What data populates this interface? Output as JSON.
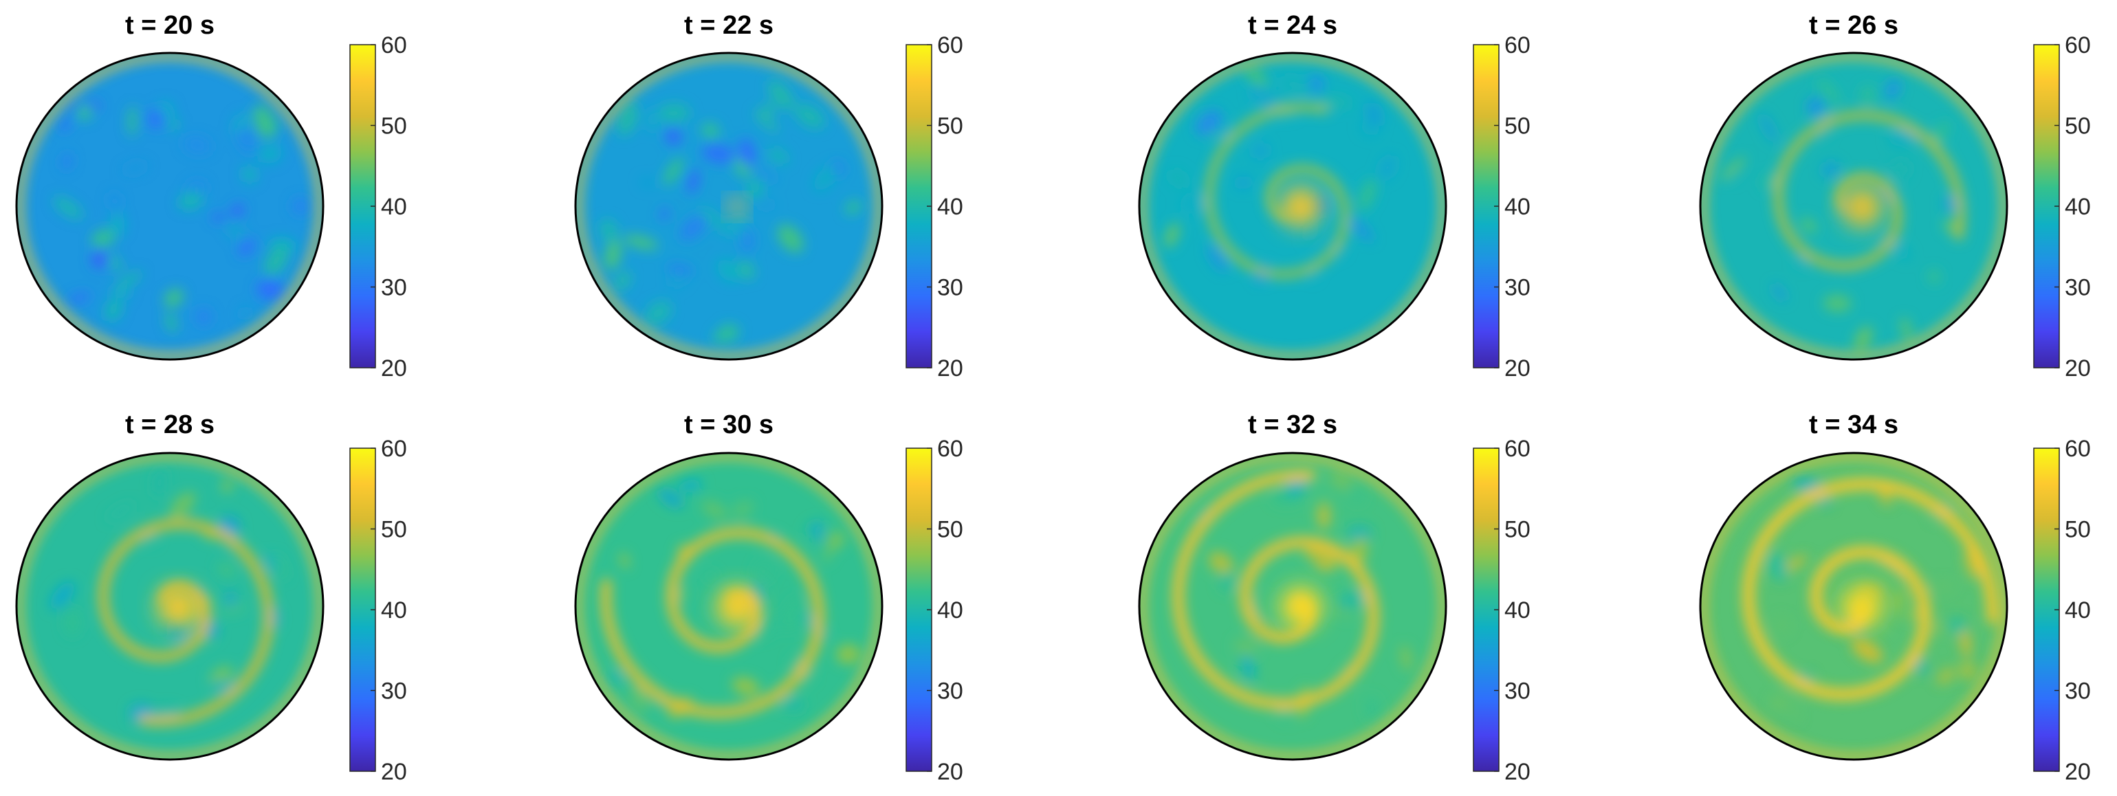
{
  "figure": {
    "colormap": [
      "#3e26a8",
      "#4743f1",
      "#2f6ffc",
      "#1f93e4",
      "#0fb0c4",
      "#33c18e",
      "#8cc44e",
      "#d8bb31",
      "#fdc92f",
      "#f9fa14"
    ],
    "boundary_color": "#000000"
  },
  "chart_data": [
    {
      "type": "heatmap",
      "title": "t = 20 s",
      "time_s": 20,
      "colorbar": {
        "min": 20,
        "max": 60,
        "ticks": [
          "60",
          "50",
          "40",
          "30",
          "20"
        ]
      },
      "background_value": 34,
      "rim_value": 56,
      "spiral": false,
      "core_value": null
    },
    {
      "type": "heatmap",
      "title": "t = 22 s",
      "time_s": 22,
      "colorbar": {
        "min": 20,
        "max": 60,
        "ticks": [
          "60",
          "50",
          "40",
          "30",
          "20"
        ]
      },
      "background_value": 35,
      "rim_value": 55,
      "spiral": false,
      "core_value": 54
    },
    {
      "type": "heatmap",
      "title": "t = 24 s",
      "time_s": 24,
      "colorbar": {
        "min": 20,
        "max": 60,
        "ticks": [
          "60",
          "50",
          "40",
          "30",
          "20"
        ]
      },
      "background_value": 38,
      "rim_value": 54,
      "spiral": true,
      "core_value": 54
    },
    {
      "type": "heatmap",
      "title": "t = 26 s",
      "time_s": 26,
      "colorbar": {
        "min": 20,
        "max": 60,
        "ticks": [
          "60",
          "50",
          "40",
          "30",
          "20"
        ]
      },
      "background_value": 39,
      "rim_value": 54,
      "spiral": true,
      "core_value": 53
    },
    {
      "type": "heatmap",
      "title": "t = 28 s",
      "time_s": 28,
      "colorbar": {
        "min": 20,
        "max": 60,
        "ticks": [
          "60",
          "50",
          "40",
          "30",
          "20"
        ]
      },
      "background_value": 41,
      "rim_value": 54,
      "spiral": true,
      "core_value": 55
    },
    {
      "type": "heatmap",
      "title": "t = 30 s",
      "time_s": 30,
      "colorbar": {
        "min": 20,
        "max": 60,
        "ticks": [
          "60",
          "50",
          "40",
          "30",
          "20"
        ]
      },
      "background_value": 42,
      "rim_value": 54,
      "spiral": true,
      "core_value": 56
    },
    {
      "type": "heatmap",
      "title": "t = 32 s",
      "time_s": 32,
      "colorbar": {
        "min": 20,
        "max": 60,
        "ticks": [
          "60",
          "50",
          "40",
          "30",
          "20"
        ]
      },
      "background_value": 43,
      "rim_value": 54,
      "spiral": true,
      "core_value": 57
    },
    {
      "type": "heatmap",
      "title": "t = 34 s",
      "time_s": 34,
      "colorbar": {
        "min": 20,
        "max": 60,
        "ticks": [
          "60",
          "50",
          "40",
          "30",
          "20"
        ]
      },
      "background_value": 44,
      "rim_value": 54,
      "spiral": true,
      "core_value": 57
    }
  ]
}
